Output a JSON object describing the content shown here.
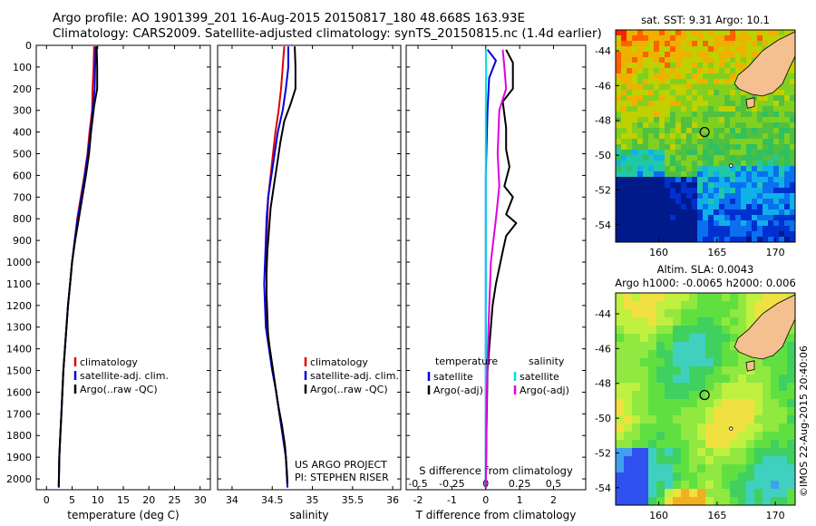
{
  "header": {
    "line1": "Argo profile: AO 1901399_201 16-Aug-2015 20150817_180 48.668S 163.93E",
    "line2": "Climatology: CARS2009. Satellite-adjusted climatology: synTS_20150815.nc (1.4d earlier)"
  },
  "stamp": "©IMOS 22-Aug-2015 20:40:06",
  "colors": {
    "climatology": "#e00000",
    "satellite": "#0000e0",
    "argo": "#000000",
    "s_satellite": "#00e0e0",
    "s_argo": "#e000e0",
    "land": "#f4c090",
    "map_ring": "#000000"
  },
  "chart_data": [
    {
      "type": "line",
      "panel": "temperature",
      "xlabel": "temperature (deg C)",
      "x_ticks": [
        0,
        5,
        10,
        15,
        20,
        25,
        30
      ],
      "xlim": [
        -2,
        32
      ],
      "y_ticks": [
        0,
        100,
        200,
        300,
        400,
        500,
        600,
        700,
        800,
        900,
        1000,
        1100,
        1200,
        1300,
        1400,
        1500,
        1600,
        1700,
        1800,
        1900,
        2000
      ],
      "ylim": [
        2050,
        0
      ],
      "legend": [
        "climatology",
        "satellite-adj. clim.",
        "Argo(..raw -QC)"
      ],
      "series": [
        {
          "name": "climatology",
          "color": "#e00000",
          "points": [
            [
              9.3,
              5
            ],
            [
              9.2,
              100
            ],
            [
              9.0,
              200
            ],
            [
              8.9,
              300
            ],
            [
              8.4,
              400
            ],
            [
              8.0,
              500
            ],
            [
              7.4,
              600
            ],
            [
              6.7,
              700
            ],
            [
              6.0,
              800
            ],
            [
              5.5,
              900
            ],
            [
              5.0,
              1000
            ],
            [
              4.6,
              1100
            ],
            [
              4.2,
              1200
            ],
            [
              3.9,
              1300
            ],
            [
              3.6,
              1400
            ],
            [
              3.3,
              1500
            ],
            [
              3.1,
              1600
            ],
            [
              2.9,
              1700
            ],
            [
              2.7,
              1800
            ],
            [
              2.5,
              1900
            ],
            [
              2.4,
              2040
            ]
          ]
        },
        {
          "name": "satellite-adj. clim.",
          "color": "#0000e0",
          "points": [
            [
              9.6,
              5
            ],
            [
              9.5,
              100
            ],
            [
              9.4,
              200
            ],
            [
              9.0,
              300
            ],
            [
              8.6,
              400
            ],
            [
              8.1,
              500
            ],
            [
              7.5,
              600
            ],
            [
              6.8,
              700
            ],
            [
              6.1,
              800
            ],
            [
              5.5,
              900
            ],
            [
              5.0,
              1000
            ],
            [
              4.6,
              1100
            ],
            [
              4.2,
              1200
            ],
            [
              3.9,
              1300
            ],
            [
              3.6,
              1400
            ],
            [
              3.3,
              1500
            ],
            [
              3.1,
              1600
            ],
            [
              2.9,
              1700
            ],
            [
              2.7,
              1800
            ],
            [
              2.5,
              1900
            ],
            [
              2.4,
              2040
            ]
          ]
        },
        {
          "name": "Argo(..raw -QC)",
          "color": "#000000",
          "points": [
            [
              9.8,
              5
            ],
            [
              9.9,
              100
            ],
            [
              9.9,
              200
            ],
            [
              9.3,
              280
            ],
            [
              8.7,
              400
            ],
            [
              8.3,
              500
            ],
            [
              7.7,
              600
            ],
            [
              7.0,
              700
            ],
            [
              6.3,
              800
            ],
            [
              5.6,
              900
            ],
            [
              5.0,
              1000
            ],
            [
              4.6,
              1100
            ],
            [
              4.2,
              1200
            ],
            [
              3.9,
              1300
            ],
            [
              3.6,
              1400
            ],
            [
              3.3,
              1500
            ],
            [
              3.1,
              1600
            ],
            [
              2.9,
              1700
            ],
            [
              2.7,
              1800
            ],
            [
              2.5,
              1900
            ],
            [
              2.4,
              2035
            ]
          ]
        }
      ]
    },
    {
      "type": "line",
      "panel": "salinity",
      "xlabel": "salinity",
      "x_ticks": [
        34,
        34.5,
        35,
        35.5,
        36
      ],
      "xlim": [
        33.82,
        36.1
      ],
      "y_ticks": [
        0,
        100,
        200,
        300,
        400,
        500,
        600,
        700,
        800,
        900,
        1000,
        1100,
        1200,
        1300,
        1400,
        1500,
        1600,
        1700,
        1800,
        1900,
        2000
      ],
      "ylim": [
        2050,
        0
      ],
      "legend": [
        "climatology",
        "satellite-adj. clim.",
        "Argo(..raw -QC)"
      ],
      "note_lines": [
        "US ARGO PROJECT",
        "PI: STEPHEN RISER"
      ],
      "series": [
        {
          "name": "climatology",
          "color": "#e00000",
          "points": [
            [
              34.65,
              5
            ],
            [
              34.63,
              100
            ],
            [
              34.61,
              200
            ],
            [
              34.58,
              300
            ],
            [
              34.54,
              400
            ],
            [
              34.51,
              500
            ],
            [
              34.48,
              600
            ],
            [
              34.45,
              700
            ],
            [
              34.44,
              800
            ],
            [
              34.43,
              900
            ],
            [
              34.43,
              1000
            ],
            [
              34.43,
              1100
            ],
            [
              34.43,
              1200
            ],
            [
              34.44,
              1300
            ],
            [
              34.47,
              1400
            ],
            [
              34.51,
              1500
            ],
            [
              34.55,
              1600
            ],
            [
              34.59,
              1700
            ],
            [
              34.63,
              1800
            ],
            [
              34.67,
              1900
            ],
            [
              34.69,
              2040
            ]
          ]
        },
        {
          "name": "satellite-adj. clim.",
          "color": "#0000e0",
          "points": [
            [
              34.7,
              5
            ],
            [
              34.7,
              100
            ],
            [
              34.67,
              200
            ],
            [
              34.63,
              300
            ],
            [
              34.57,
              400
            ],
            [
              34.53,
              500
            ],
            [
              34.49,
              600
            ],
            [
              34.45,
              700
            ],
            [
              34.43,
              800
            ],
            [
              34.42,
              900
            ],
            [
              34.41,
              1000
            ],
            [
              34.4,
              1100
            ],
            [
              34.41,
              1200
            ],
            [
              34.42,
              1300
            ],
            [
              34.46,
              1400
            ],
            [
              34.5,
              1500
            ],
            [
              34.55,
              1600
            ],
            [
              34.59,
              1700
            ],
            [
              34.63,
              1800
            ],
            [
              34.67,
              1900
            ],
            [
              34.69,
              2040
            ]
          ]
        },
        {
          "name": "Argo(..raw -QC)",
          "color": "#000000",
          "points": [
            [
              34.78,
              5
            ],
            [
              34.79,
              100
            ],
            [
              34.79,
              200
            ],
            [
              34.73,
              270
            ],
            [
              34.65,
              350
            ],
            [
              34.6,
              450
            ],
            [
              34.56,
              550
            ],
            [
              34.52,
              650
            ],
            [
              34.48,
              750
            ],
            [
              34.46,
              850
            ],
            [
              34.44,
              950
            ],
            [
              34.43,
              1050
            ],
            [
              34.43,
              1150
            ],
            [
              34.44,
              1250
            ],
            [
              34.45,
              1350
            ],
            [
              34.49,
              1450
            ],
            [
              34.53,
              1550
            ],
            [
              34.57,
              1650
            ],
            [
              34.62,
              1750
            ],
            [
              34.66,
              1850
            ],
            [
              34.68,
              1950
            ],
            [
              34.69,
              2020
            ]
          ]
        }
      ]
    },
    {
      "type": "line",
      "panel": "difference",
      "xlabel": "T difference from climatology",
      "top_label": "S difference from climatology",
      "x_ticks": [
        -2,
        -1,
        0,
        1,
        2
      ],
      "x_ticks_top": [
        -0.5,
        -0.25,
        0,
        0.25,
        0.5
      ],
      "xlim": [
        -2.35,
        2.95
      ],
      "y_ticks": [
        0,
        100,
        200,
        300,
        400,
        500,
        600,
        700,
        800,
        900,
        1000,
        1100,
        1200,
        1300,
        1400,
        1500,
        1600,
        1700,
        1800,
        1900,
        2000
      ],
      "ylim": [
        2050,
        0
      ],
      "legend_titles": [
        "temperature",
        "salinity"
      ],
      "legend": [
        "satellite",
        "Argo(-adj)",
        "satellite",
        "Argo(-adj)"
      ],
      "series": [
        {
          "name": "T satellite",
          "color": "#0000e0",
          "points": [
            [
              0.05,
              20
            ],
            [
              0.3,
              70
            ],
            [
              0.1,
              150
            ],
            [
              0.05,
              300
            ],
            [
              0.0,
              600
            ],
            [
              0.0,
              1000
            ],
            [
              0.0,
              1400
            ],
            [
              0.0,
              1800
            ],
            [
              0.0,
              2040
            ]
          ]
        },
        {
          "name": "T Argo(-adj)",
          "color": "#000000",
          "points": [
            [
              0.6,
              20
            ],
            [
              0.8,
              80
            ],
            [
              0.8,
              200
            ],
            [
              0.5,
              260
            ],
            [
              0.6,
              380
            ],
            [
              0.6,
              480
            ],
            [
              0.7,
              560
            ],
            [
              0.55,
              650
            ],
            [
              0.8,
              700
            ],
            [
              0.6,
              780
            ],
            [
              0.9,
              820
            ],
            [
              0.6,
              880
            ],
            [
              0.5,
              950
            ],
            [
              0.3,
              1100
            ],
            [
              0.2,
              1200
            ],
            [
              0.15,
              1300
            ],
            [
              0.1,
              1400
            ],
            [
              0.05,
              1500
            ],
            [
              0.02,
              1800
            ],
            [
              0.0,
              2040
            ]
          ]
        },
        {
          "name": "S satellite",
          "color": "#00e0e0",
          "points": [
            [
              0.0,
              20
            ],
            [
              0.01,
              100
            ],
            [
              0.0,
              300
            ],
            [
              0.0,
              800
            ],
            [
              0.0,
              1200
            ],
            [
              0.0,
              2040
            ]
          ]
        },
        {
          "name": "S Argo(-adj)",
          "color": "#e000e0",
          "points": [
            [
              0.5,
              20
            ],
            [
              0.55,
              100
            ],
            [
              0.6,
              200
            ],
            [
              0.4,
              300
            ],
            [
              0.35,
              500
            ],
            [
              0.4,
              650
            ],
            [
              0.3,
              800
            ],
            [
              0.15,
              1000
            ],
            [
              0.08,
              1300
            ],
            [
              0.03,
              1600
            ],
            [
              0.0,
              2040
            ]
          ]
        }
      ]
    },
    {
      "type": "heatmap",
      "panel": "sst_map",
      "title": "sat. SST: 9.31 Argo: 10.1",
      "x_ticks": [
        160,
        165,
        170
      ],
      "y_ticks": [
        -44,
        -46,
        -48,
        -50,
        -52,
        -54
      ],
      "xlim": [
        156.3,
        171.7
      ],
      "ylim": [
        -55,
        -42.8
      ],
      "argo_position": [
        163.93,
        -48.668
      ]
    },
    {
      "type": "heatmap",
      "panel": "sla_map",
      "title_lines": [
        "Altim. SLA: 0.0043",
        "Argo h1000: -0.0065 h2000: 0.006"
      ],
      "x_ticks": [
        160,
        165,
        170
      ],
      "y_ticks": [
        -44,
        -46,
        -48,
        -50,
        -52,
        -54
      ],
      "xlim": [
        156.3,
        171.7
      ],
      "ylim": [
        -55,
        -42.8
      ],
      "argo_position": [
        163.93,
        -48.668
      ]
    }
  ]
}
